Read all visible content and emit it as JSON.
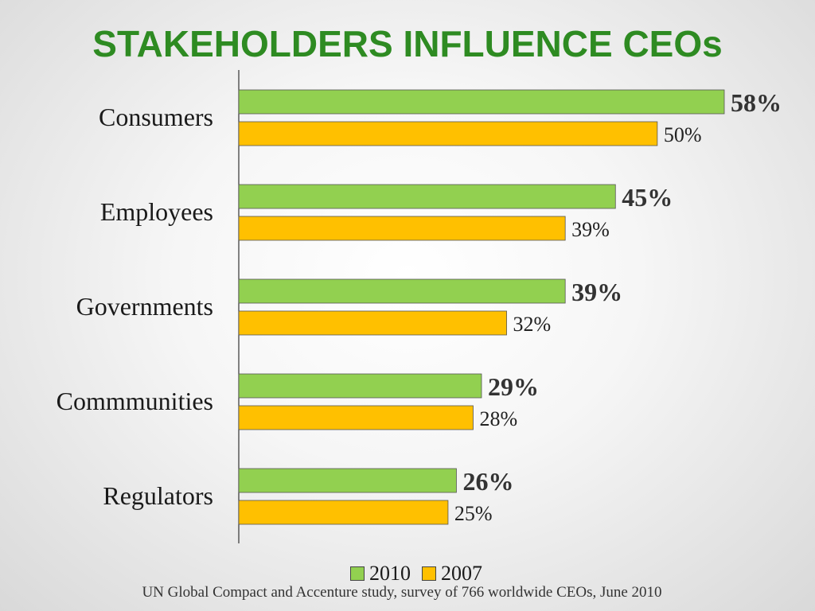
{
  "title": "STAKEHOLDERS INFLUENCE CEOs",
  "source": "UN Global Compact and Accenture study, survey of 766 worldwide CEOs, June 2010",
  "colors": {
    "series_2010": "#92d050",
    "series_2007": "#ffc000",
    "title": "#2e8b22"
  },
  "legend": {
    "item_2010": "2010",
    "item_2007": "2007"
  },
  "chart_data": {
    "type": "bar",
    "orientation": "horizontal",
    "title": "STAKEHOLDERS INFLUENCE CEOs",
    "categories": [
      "Consumers",
      "Employees",
      "Governments",
      "Commmunities",
      "Regulators"
    ],
    "series": [
      {
        "name": "2010",
        "values": [
          58,
          45,
          39,
          29,
          26
        ],
        "labels": [
          "58%",
          "45%",
          "39%",
          "29%",
          "26%"
        ]
      },
      {
        "name": "2007",
        "values": [
          50,
          39,
          32,
          28,
          25
        ],
        "labels": [
          "50%",
          "39%",
          "32%",
          "28%",
          "25%"
        ]
      }
    ],
    "xlim": [
      0,
      58
    ],
    "grid": false,
    "legend_position": "bottom"
  }
}
